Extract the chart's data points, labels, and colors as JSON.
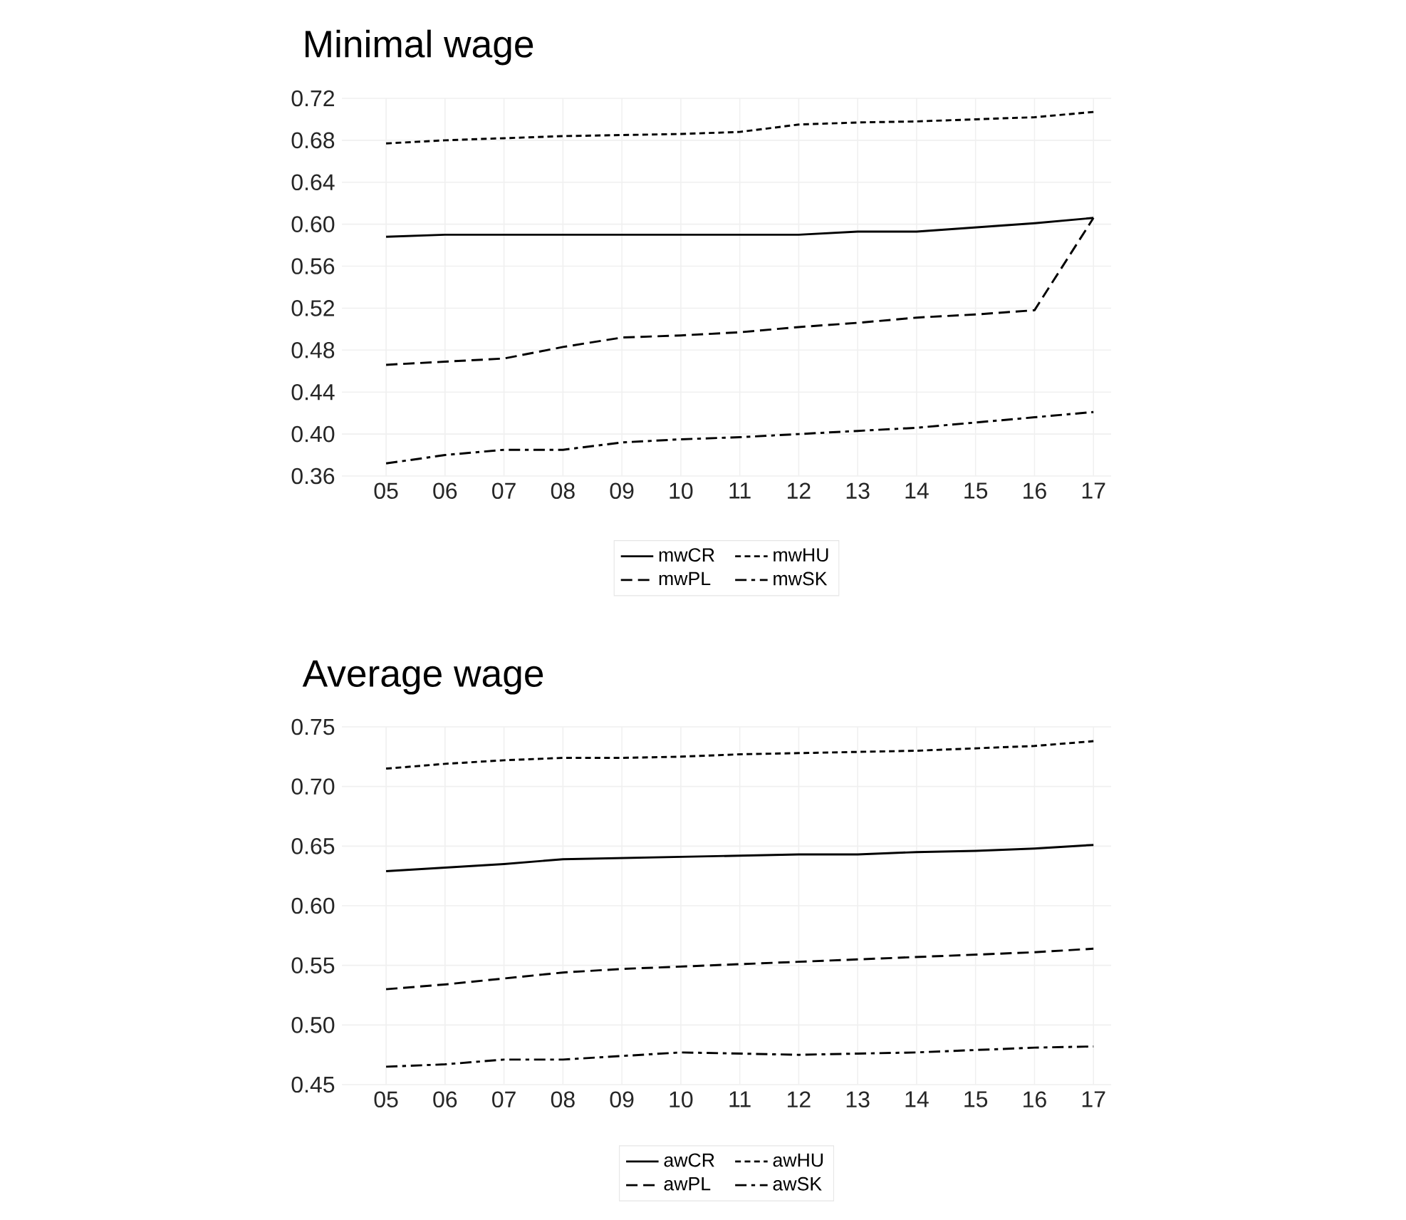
{
  "chart_data": [
    {
      "type": "line",
      "title": "Minimal wage",
      "categories": [
        "05",
        "06",
        "07",
        "08",
        "09",
        "10",
        "11",
        "12",
        "13",
        "14",
        "15",
        "16",
        "17"
      ],
      "series": [
        {
          "name": "mwCR",
          "color": "#000000",
          "line_style": "solid",
          "values": [
            0.588,
            0.59,
            0.59,
            0.59,
            0.59,
            0.59,
            0.59,
            0.59,
            0.593,
            0.593,
            0.597,
            0.601,
            0.606
          ]
        },
        {
          "name": "mwHU",
          "color": "#000000",
          "line_style": "dotted",
          "values": [
            0.677,
            0.68,
            0.682,
            0.684,
            0.685,
            0.686,
            0.688,
            0.695,
            0.697,
            0.698,
            0.7,
            0.702,
            0.707
          ]
        },
        {
          "name": "mwPL",
          "color": "#000000",
          "line_style": "dashed",
          "values": [
            0.466,
            0.469,
            0.472,
            0.483,
            0.492,
            0.494,
            0.497,
            0.502,
            0.506,
            0.511,
            0.514,
            0.518,
            0.606
          ]
        },
        {
          "name": "mwSK",
          "color": "#000000",
          "line_style": "dashdot",
          "values": [
            0.372,
            0.38,
            0.385,
            0.385,
            0.392,
            0.395,
            0.397,
            0.4,
            0.403,
            0.406,
            0.411,
            0.416,
            0.421
          ]
        }
      ],
      "ylim": [
        0.36,
        0.72
      ],
      "yticks": [
        {
          "value": 0.36,
          "label": "0.36"
        },
        {
          "value": 0.4,
          "label": "0.40"
        },
        {
          "value": 0.44,
          "label": "0.44"
        },
        {
          "value": 0.48,
          "label": "0.48"
        },
        {
          "value": 0.52,
          "label": "0.52"
        },
        {
          "value": 0.56,
          "label": "0.56"
        },
        {
          "value": 0.6,
          "label": "0.60"
        },
        {
          "value": 0.64,
          "label": "0.64"
        },
        {
          "value": 0.68,
          "label": "0.68"
        },
        {
          "value": 0.72,
          "label": "0.72"
        }
      ],
      "grid": true,
      "legend": "bottom",
      "marker": "none"
    },
    {
      "type": "line",
      "title": "Average wage",
      "categories": [
        "05",
        "06",
        "07",
        "08",
        "09",
        "10",
        "11",
        "12",
        "13",
        "14",
        "15",
        "16",
        "17"
      ],
      "series": [
        {
          "name": "awCR",
          "color": "#000000",
          "line_style": "solid",
          "values": [
            0.629,
            0.632,
            0.635,
            0.639,
            0.64,
            0.641,
            0.642,
            0.643,
            0.643,
            0.645,
            0.646,
            0.648,
            0.651
          ]
        },
        {
          "name": "awHU",
          "color": "#000000",
          "line_style": "dotted",
          "values": [
            0.715,
            0.719,
            0.722,
            0.724,
            0.724,
            0.725,
            0.727,
            0.728,
            0.729,
            0.73,
            0.732,
            0.734,
            0.738
          ]
        },
        {
          "name": "awPL",
          "color": "#000000",
          "line_style": "dashed",
          "values": [
            0.53,
            0.534,
            0.539,
            0.544,
            0.547,
            0.549,
            0.551,
            0.553,
            0.555,
            0.557,
            0.559,
            0.561,
            0.564
          ]
        },
        {
          "name": "awSK",
          "color": "#000000",
          "line_style": "dashdot",
          "values": [
            0.465,
            0.467,
            0.471,
            0.471,
            0.474,
            0.477,
            0.476,
            0.475,
            0.476,
            0.477,
            0.479,
            0.481,
            0.482
          ]
        }
      ],
      "ylim": [
        0.45,
        0.75
      ],
      "yticks": [
        {
          "value": 0.45,
          "label": "0.45"
        },
        {
          "value": 0.5,
          "label": "0.50"
        },
        {
          "value": 0.55,
          "label": "0.55"
        },
        {
          "value": 0.6,
          "label": "0.60"
        },
        {
          "value": 0.65,
          "label": "0.65"
        },
        {
          "value": 0.7,
          "label": "0.70"
        },
        {
          "value": 0.75,
          "label": "0.75"
        }
      ],
      "grid": true,
      "legend": "bottom",
      "marker": "none"
    }
  ]
}
